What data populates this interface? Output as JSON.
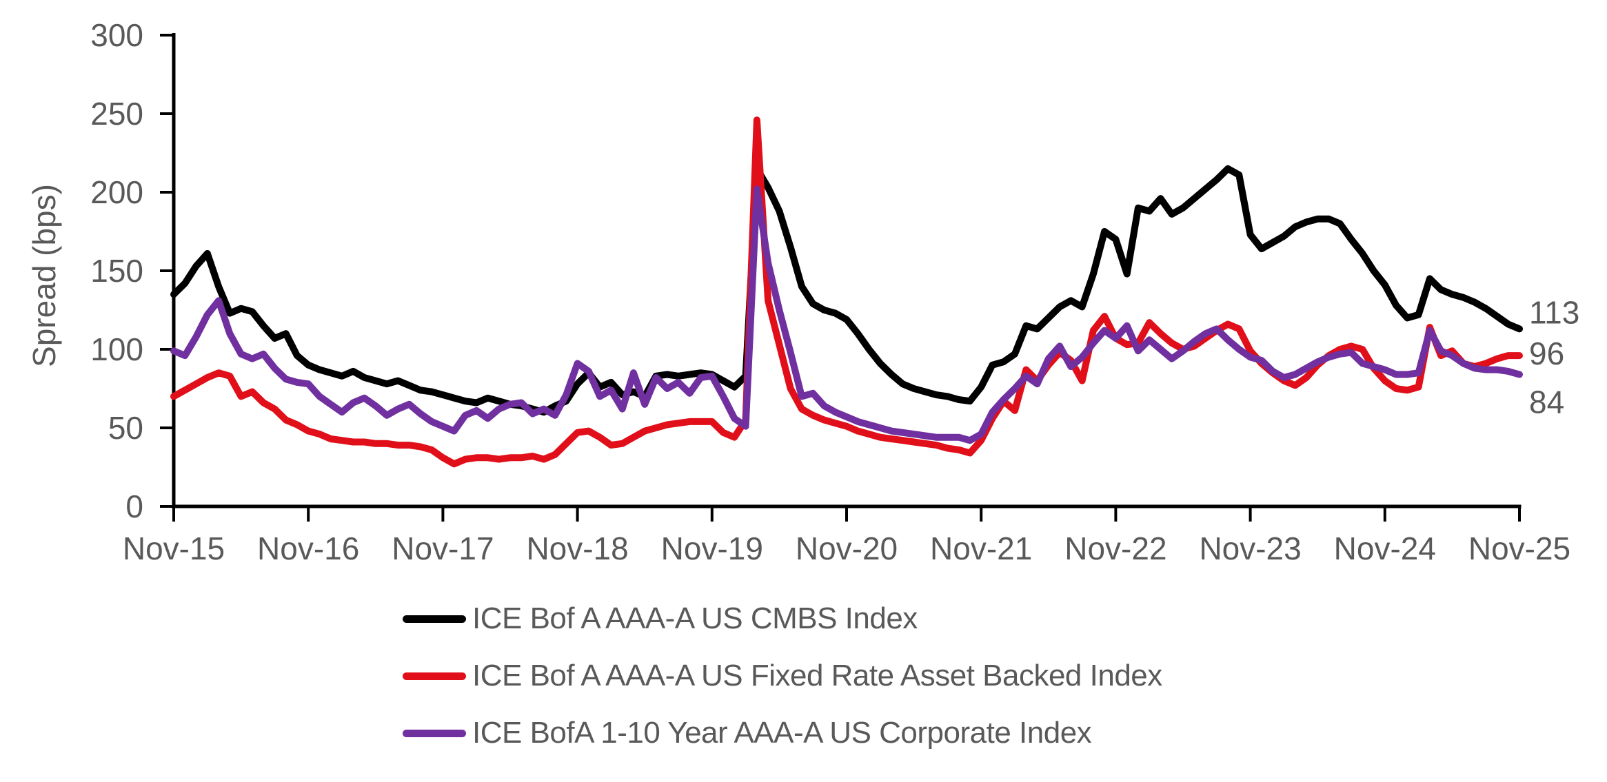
{
  "chart_data": {
    "type": "line",
    "title": "",
    "xlabel": "",
    "ylabel": "Spread (bps)",
    "ylim": [
      0,
      300
    ],
    "y_ticks": [
      0,
      50,
      100,
      150,
      200,
      250,
      300
    ],
    "x_tick_labels": [
      "Nov-15",
      "Nov-16",
      "Nov-17",
      "Nov-18",
      "Nov-19",
      "Nov-20",
      "Nov-21",
      "Nov-22",
      "Nov-23",
      "Nov-24",
      "Nov-25"
    ],
    "x_frequency": "monthly",
    "grid": false,
    "legend_position": "bottom",
    "axis_color": "#000000",
    "text_color": "#595959",
    "series": [
      {
        "key": "cmbs",
        "name": "ICE Bof A AAA-A US CMBS Index",
        "color": "#000000",
        "end_label": "113",
        "values": [
          135,
          142,
          153,
          161,
          140,
          123,
          126,
          124,
          115,
          107,
          110,
          96,
          90,
          87,
          85,
          83,
          86,
          82,
          80,
          78,
          80,
          77,
          74,
          73,
          71,
          69,
          67,
          66,
          69,
          67,
          65,
          64,
          62,
          60,
          64,
          67,
          78,
          85,
          76,
          79,
          71,
          73,
          70,
          83,
          84,
          83,
          84,
          85,
          84,
          80,
          76,
          83,
          215,
          203,
          188,
          165,
          140,
          129,
          125,
          123,
          119,
          110,
          100,
          91,
          84,
          78,
          75,
          73,
          71,
          70,
          68,
          67,
          76,
          90,
          92,
          97,
          115,
          113,
          120,
          127,
          131,
          127,
          148,
          175,
          170,
          148,
          190,
          188,
          196,
          186,
          190,
          196,
          202,
          208,
          215,
          211,
          173,
          164,
          168,
          172,
          178,
          181,
          183,
          183,
          180,
          170,
          161,
          150,
          141,
          128,
          120,
          122,
          145,
          138,
          135,
          133,
          130,
          126,
          121,
          116,
          113
        ]
      },
      {
        "key": "abs",
        "name": "ICE Bof A AAA-A US Fixed Rate Asset Backed Index",
        "color": "#e10f19",
        "end_label": "96",
        "values": [
          70,
          74,
          78,
          82,
          85,
          83,
          70,
          73,
          66,
          62,
          55,
          52,
          48,
          46,
          43,
          42,
          41,
          41,
          40,
          40,
          39,
          39,
          38,
          36,
          31,
          27,
          30,
          31,
          31,
          30,
          31,
          31,
          32,
          30,
          33,
          40,
          47,
          48,
          44,
          39,
          40,
          44,
          48,
          50,
          52,
          53,
          54,
          54,
          54,
          47,
          44,
          55,
          246,
          131,
          103,
          75,
          62,
          58,
          55,
          53,
          51,
          48,
          46,
          44,
          43,
          42,
          41,
          40,
          39,
          37,
          36,
          34,
          42,
          56,
          67,
          61,
          87,
          80,
          90,
          98,
          93,
          80,
          112,
          121,
          107,
          103,
          104,
          117,
          110,
          104,
          100,
          102,
          107,
          112,
          116,
          113,
          99,
          91,
          85,
          80,
          77,
          82,
          90,
          96,
          100,
          102,
          100,
          88,
          80,
          75,
          74,
          76,
          114,
          96,
          99,
          91,
          89,
          91,
          94,
          96,
          96
        ]
      },
      {
        "key": "corporate",
        "name": "ICE BofA 1-10 Year AAA-A US Corporate Index",
        "color": "#7030a0",
        "end_label": "84",
        "values": [
          99,
          96,
          108,
          122,
          131,
          110,
          97,
          94,
          97,
          88,
          81,
          79,
          78,
          70,
          65,
          60,
          66,
          69,
          64,
          58,
          62,
          65,
          59,
          54,
          51,
          48,
          58,
          61,
          56,
          62,
          65,
          66,
          59,
          62,
          58,
          71,
          91,
          86,
          70,
          74,
          62,
          85,
          65,
          82,
          75,
          79,
          72,
          82,
          83,
          70,
          56,
          51,
          202,
          155,
          125,
          98,
          70,
          72,
          64,
          60,
          57,
          54,
          52,
          50,
          48,
          47,
          46,
          45,
          44,
          44,
          44,
          42,
          46,
          60,
          68,
          75,
          83,
          78,
          94,
          102,
          89,
          95,
          104,
          112,
          107,
          115,
          99,
          106,
          100,
          94,
          99,
          105,
          110,
          113,
          106,
          100,
          95,
          93,
          86,
          82,
          84,
          88,
          92,
          95,
          97,
          98,
          91,
          89,
          87,
          84,
          84,
          85,
          112,
          99,
          96,
          91,
          88,
          87,
          87,
          86,
          84
        ]
      }
    ]
  }
}
